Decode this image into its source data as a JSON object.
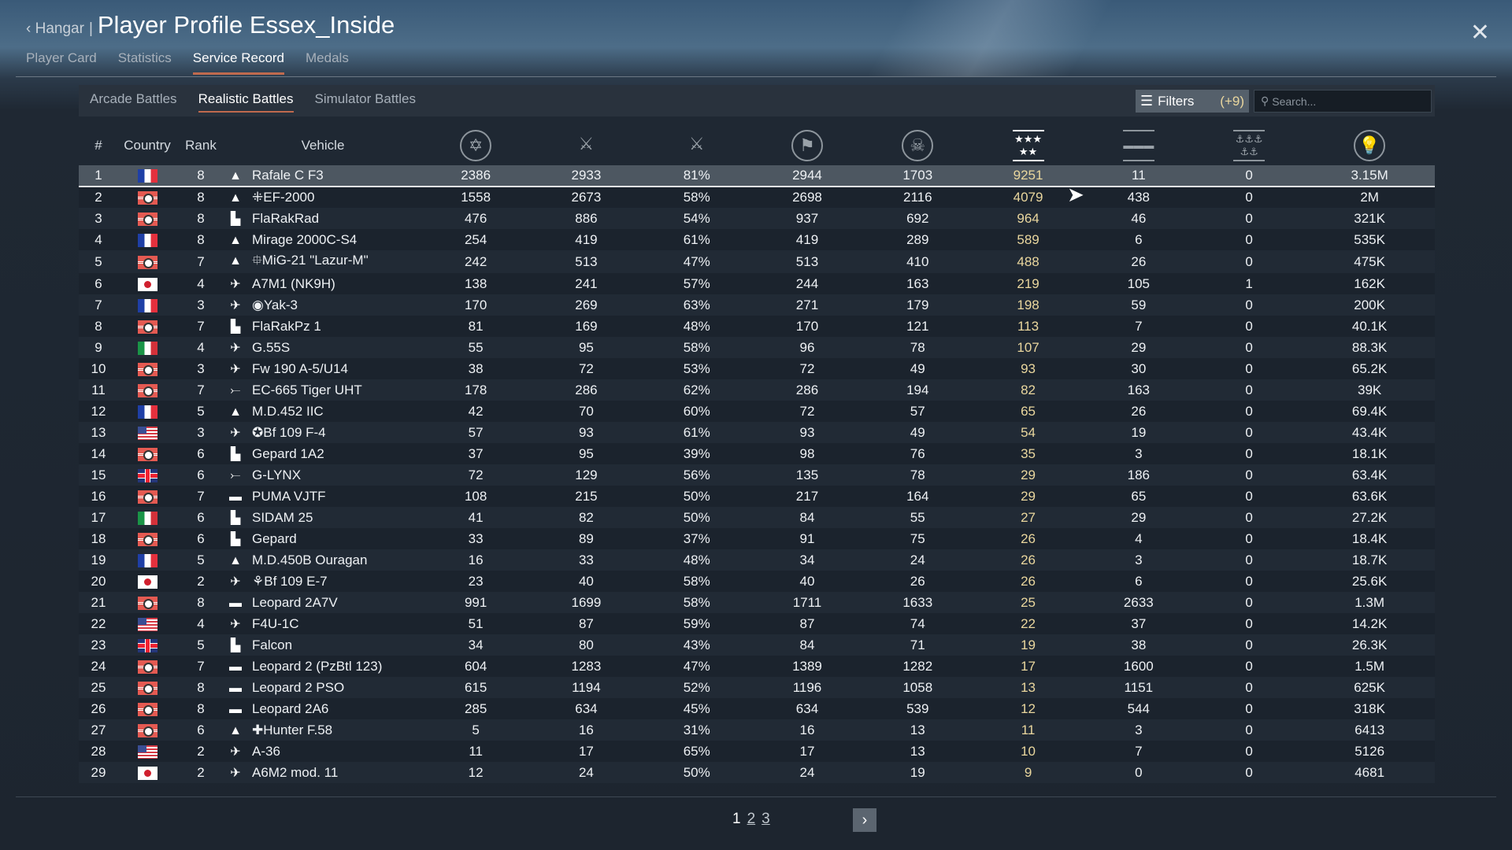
{
  "header": {
    "back_label": "Hangar",
    "title": "Player Profile Essex_Inside",
    "close_icon": "close-icon"
  },
  "tabs": [
    {
      "label": "Player Card"
    },
    {
      "label": "Statistics"
    },
    {
      "label": "Service Record",
      "active": true
    },
    {
      "label": "Medals"
    }
  ],
  "battle_tabs": [
    {
      "label": "Arcade Battles"
    },
    {
      "label": "Realistic Battles",
      "active": true
    },
    {
      "label": "Simulator Battles"
    }
  ],
  "filters": {
    "label": "Filters",
    "count": "(+9)"
  },
  "search": {
    "placeholder": "Search...",
    "value": ""
  },
  "table": {
    "columns": [
      "#",
      "Country",
      "Rank",
      "Vehicle"
    ],
    "stat_icons": [
      "battles-star-icon",
      "respawns-swords-icon",
      "victories-swords-star-icon",
      "missions-flag-icon",
      "deaths-skull-icon",
      "kills-stars-icon",
      "ground-kills-tanks-icon",
      "naval-kills-anchors-icon",
      "score-lightbulb-icon"
    ],
    "gold_color": "#ead79e",
    "rows": [
      [
        "1",
        "france",
        "8",
        "jet",
        "Rafale C F3",
        "2386",
        "2933",
        "81%",
        "2944",
        "1703",
        "9251",
        "11",
        "0",
        "3.15M"
      ],
      [
        "2",
        "germany",
        "8",
        "jet",
        "⁜EF-2000",
        "1558",
        "2673",
        "58%",
        "2698",
        "2116",
        "4079",
        "438",
        "0",
        "2M"
      ],
      [
        "3",
        "germany",
        "8",
        "aa",
        "FlaRakRad",
        "476",
        "886",
        "54%",
        "937",
        "692",
        "964",
        "46",
        "0",
        "321K"
      ],
      [
        "4",
        "france",
        "8",
        "jet",
        "Mirage 2000C-S4",
        "254",
        "419",
        "61%",
        "419",
        "289",
        "589",
        "6",
        "0",
        "535K"
      ],
      [
        "5",
        "germany",
        "7",
        "jet",
        "⯐MiG-21 \"Lazur-M\"",
        "242",
        "513",
        "47%",
        "513",
        "410",
        "488",
        "26",
        "0",
        "475K"
      ],
      [
        "6",
        "japan",
        "4",
        "prop",
        "A7M1 (NK9H)",
        "138",
        "241",
        "57%",
        "244",
        "163",
        "219",
        "105",
        "1",
        "162K"
      ],
      [
        "7",
        "france",
        "3",
        "prop",
        "◉Yak-3",
        "170",
        "269",
        "63%",
        "271",
        "179",
        "198",
        "59",
        "0",
        "200K"
      ],
      [
        "8",
        "germany",
        "7",
        "aa",
        "FlaRakPz 1",
        "81",
        "169",
        "48%",
        "170",
        "121",
        "113",
        "7",
        "0",
        "40.1K"
      ],
      [
        "9",
        "italy",
        "4",
        "prop",
        "G.55S",
        "55",
        "95",
        "58%",
        "96",
        "78",
        "107",
        "29",
        "0",
        "88.3K"
      ],
      [
        "10",
        "germany",
        "3",
        "prop",
        "Fw 190 A-5/U14",
        "38",
        "72",
        "53%",
        "72",
        "49",
        "93",
        "30",
        "0",
        "65.2K"
      ],
      [
        "11",
        "germany",
        "7",
        "heli",
        "EC-665 Tiger UHT",
        "178",
        "286",
        "62%",
        "286",
        "194",
        "82",
        "163",
        "0",
        "39K"
      ],
      [
        "12",
        "france",
        "5",
        "jet",
        "M.D.452 IIC",
        "42",
        "70",
        "60%",
        "72",
        "57",
        "65",
        "26",
        "0",
        "69.4K"
      ],
      [
        "13",
        "usa",
        "3",
        "prop",
        "✪Bf 109 F-4",
        "57",
        "93",
        "61%",
        "93",
        "49",
        "54",
        "19",
        "0",
        "43.4K"
      ],
      [
        "14",
        "germany",
        "6",
        "aa",
        "Gepard 1A2",
        "37",
        "95",
        "39%",
        "98",
        "76",
        "35",
        "3",
        "0",
        "18.1K"
      ],
      [
        "15",
        "uk",
        "6",
        "heli",
        "G-LYNX",
        "72",
        "129",
        "56%",
        "135",
        "78",
        "29",
        "186",
        "0",
        "63.4K"
      ],
      [
        "16",
        "germany",
        "7",
        "tank",
        "PUMA VJTF",
        "108",
        "215",
        "50%",
        "217",
        "164",
        "29",
        "65",
        "0",
        "63.6K"
      ],
      [
        "17",
        "italy",
        "6",
        "aa",
        "SIDAM 25",
        "41",
        "82",
        "50%",
        "84",
        "55",
        "27",
        "29",
        "0",
        "27.2K"
      ],
      [
        "18",
        "germany",
        "6",
        "aa",
        "Gepard",
        "33",
        "89",
        "37%",
        "91",
        "75",
        "26",
        "4",
        "0",
        "18.4K"
      ],
      [
        "19",
        "france",
        "5",
        "jet",
        "M.D.450B Ouragan",
        "16",
        "33",
        "48%",
        "34",
        "24",
        "26",
        "3",
        "0",
        "18.7K"
      ],
      [
        "20",
        "japan",
        "2",
        "prop",
        "⚘Bf 109 E-7",
        "23",
        "40",
        "58%",
        "40",
        "26",
        "26",
        "6",
        "0",
        "25.6K"
      ],
      [
        "21",
        "germany",
        "8",
        "tank",
        "Leopard 2A7V",
        "991",
        "1699",
        "58%",
        "1711",
        "1633",
        "25",
        "2633",
        "0",
        "1.3M"
      ],
      [
        "22",
        "usa",
        "4",
        "prop",
        "F4U-1C",
        "51",
        "87",
        "59%",
        "87",
        "74",
        "22",
        "37",
        "0",
        "14.2K"
      ],
      [
        "23",
        "uk",
        "5",
        "aa",
        "Falcon",
        "34",
        "80",
        "43%",
        "84",
        "71",
        "19",
        "38",
        "0",
        "26.3K"
      ],
      [
        "24",
        "germany",
        "7",
        "tank",
        "Leopard 2 (PzBtl 123)",
        "604",
        "1283",
        "47%",
        "1389",
        "1282",
        "17",
        "1600",
        "0",
        "1.5M"
      ],
      [
        "25",
        "germany",
        "8",
        "tank",
        "Leopard 2 PSO",
        "615",
        "1194",
        "52%",
        "1196",
        "1058",
        "13",
        "1151",
        "0",
        "625K"
      ],
      [
        "26",
        "germany",
        "8",
        "tank",
        "Leopard 2A6",
        "285",
        "634",
        "45%",
        "634",
        "539",
        "12",
        "544",
        "0",
        "318K"
      ],
      [
        "27",
        "germany",
        "6",
        "jet",
        "✚Hunter F.58",
        "5",
        "16",
        "31%",
        "16",
        "13",
        "11",
        "3",
        "0",
        "6413"
      ],
      [
        "28",
        "usa",
        "2",
        "prop",
        "A-36",
        "11",
        "17",
        "65%",
        "17",
        "13",
        "10",
        "7",
        "0",
        "5126"
      ],
      [
        "29",
        "japan",
        "2",
        "prop",
        "A6M2 mod. 11",
        "12",
        "24",
        "50%",
        "24",
        "19",
        "9",
        "0",
        "0",
        "4681"
      ]
    ]
  },
  "pagination": {
    "pages": [
      "1",
      "2",
      "3"
    ],
    "current": "1",
    "next_icon": "chevron-right-icon"
  }
}
